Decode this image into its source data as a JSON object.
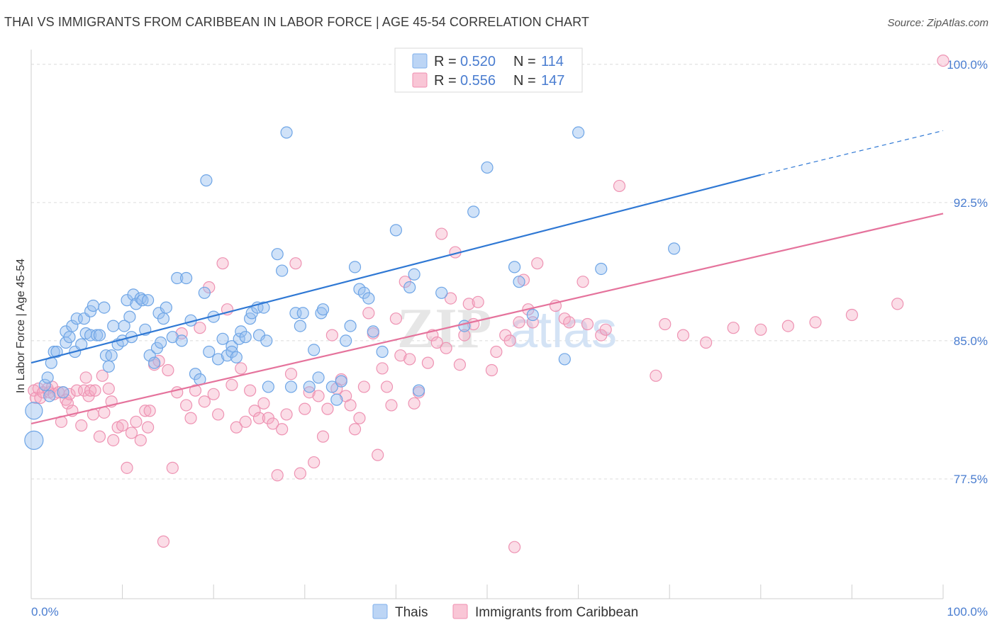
{
  "title": "THAI VS IMMIGRANTS FROM CARIBBEAN IN LABOR FORCE | AGE 45-54 CORRELATION CHART",
  "source": "Source: ZipAtlas.com",
  "watermark": {
    "zip": "ZIP",
    "atlas": "atlas"
  },
  "legend": {
    "r_label": "R =",
    "n_label": "N =",
    "series": [
      {
        "r": "0.520",
        "n": "114",
        "color": "#7fb0ec",
        "fill": "#bcd5f5"
      },
      {
        "r": "0.556",
        "n": "147",
        "color": "#f08fb0",
        "fill": "#f9c6d6"
      }
    ]
  },
  "bottom_legend": {
    "items": [
      "Thais",
      "Immigrants from Caribbean"
    ]
  },
  "chart_data": {
    "type": "scatter",
    "title": "THAI VS IMMIGRANTS FROM CARIBBEAN IN LABOR FORCE | AGE 45-54 CORRELATION CHART",
    "xlabel": "",
    "ylabel": "In Labor Force | Age 45-54",
    "xlim": [
      0,
      100
    ],
    "ylim": [
      71.0,
      100.8
    ],
    "y_ticks": [
      77.5,
      85.0,
      92.5,
      100.0
    ],
    "y_tick_labels": [
      "77.5%",
      "85.0%",
      "92.5%",
      "100.0%"
    ],
    "x_tick_labels": [
      "0.0%",
      "100.0%"
    ],
    "grid": "horizontal dashed",
    "series": [
      {
        "name": "Thais",
        "color": "#4a86d8",
        "trend": {
          "x": [
            0,
            80
          ],
          "y": [
            83.8,
            94.0
          ],
          "dashed_to": [
            100,
            96.4
          ]
        },
        "points": [
          [
            0.3,
            81.2
          ],
          [
            0.3,
            79.6
          ],
          [
            1.5,
            82.6
          ],
          [
            1.8,
            83.0
          ],
          [
            2.0,
            82.0
          ],
          [
            2.2,
            83.8
          ],
          [
            2.5,
            84.4
          ],
          [
            2.8,
            84.4
          ],
          [
            3.5,
            82.2
          ],
          [
            3.8,
            85.5
          ],
          [
            3.8,
            84.9
          ],
          [
            4.2,
            85.2
          ],
          [
            4.5,
            85.8
          ],
          [
            4.8,
            84.4
          ],
          [
            5.0,
            86.2
          ],
          [
            5.5,
            84.8
          ],
          [
            5.8,
            86.2
          ],
          [
            6.0,
            85.4
          ],
          [
            6.5,
            86.6
          ],
          [
            6.5,
            85.3
          ],
          [
            6.8,
            86.9
          ],
          [
            7.2,
            85.3
          ],
          [
            7.5,
            85.3
          ],
          [
            8.0,
            86.8
          ],
          [
            8.2,
            84.2
          ],
          [
            8.5,
            83.6
          ],
          [
            8.8,
            84.2
          ],
          [
            9.0,
            85.8
          ],
          [
            9.5,
            84.8
          ],
          [
            10.0,
            85.0
          ],
          [
            10.2,
            85.8
          ],
          [
            10.5,
            87.2
          ],
          [
            10.8,
            86.3
          ],
          [
            11.0,
            85.2
          ],
          [
            11.2,
            87.5
          ],
          [
            11.5,
            87.0
          ],
          [
            12.0,
            87.3
          ],
          [
            12.2,
            87.2
          ],
          [
            12.5,
            85.6
          ],
          [
            12.8,
            87.2
          ],
          [
            13.0,
            84.2
          ],
          [
            13.5,
            83.8
          ],
          [
            13.8,
            84.6
          ],
          [
            14.0,
            86.5
          ],
          [
            14.2,
            84.9
          ],
          [
            14.5,
            86.2
          ],
          [
            14.8,
            86.8
          ],
          [
            15.5,
            85.2
          ],
          [
            16.0,
            88.4
          ],
          [
            16.5,
            85.0
          ],
          [
            17.0,
            88.4
          ],
          [
            17.5,
            86.1
          ],
          [
            18.0,
            83.2
          ],
          [
            18.5,
            82.9
          ],
          [
            19.0,
            87.6
          ],
          [
            19.2,
            93.7
          ],
          [
            19.5,
            84.4
          ],
          [
            20.0,
            86.3
          ],
          [
            20.5,
            84.0
          ],
          [
            21.0,
            85.1
          ],
          [
            21.5,
            84.2
          ],
          [
            22.0,
            84.7
          ],
          [
            22.0,
            84.4
          ],
          [
            22.5,
            84.1
          ],
          [
            22.8,
            85.1
          ],
          [
            23.0,
            85.5
          ],
          [
            23.5,
            85.2
          ],
          [
            24.0,
            86.2
          ],
          [
            24.2,
            86.5
          ],
          [
            24.8,
            86.8
          ],
          [
            25.0,
            85.3
          ],
          [
            25.5,
            86.8
          ],
          [
            25.8,
            85.0
          ],
          [
            26.0,
            82.5
          ],
          [
            27.0,
            89.7
          ],
          [
            27.5,
            88.8
          ],
          [
            28.0,
            96.3
          ],
          [
            28.5,
            82.5
          ],
          [
            29.0,
            86.5
          ],
          [
            29.5,
            85.8
          ],
          [
            29.8,
            86.5
          ],
          [
            30.5,
            82.5
          ],
          [
            31.0,
            84.5
          ],
          [
            31.5,
            83.0
          ],
          [
            31.8,
            86.5
          ],
          [
            32.0,
            86.7
          ],
          [
            33.0,
            82.5
          ],
          [
            33.5,
            81.8
          ],
          [
            34.0,
            82.8
          ],
          [
            34.5,
            85.0
          ],
          [
            35.0,
            85.8
          ],
          [
            35.5,
            89.0
          ],
          [
            36.0,
            87.8
          ],
          [
            36.5,
            87.6
          ],
          [
            37.0,
            87.3
          ],
          [
            37.5,
            85.5
          ],
          [
            38.5,
            84.4
          ],
          [
            40.0,
            91.0
          ],
          [
            41.5,
            87.9
          ],
          [
            42.0,
            88.6
          ],
          [
            42.5,
            82.3
          ],
          [
            45.0,
            87.6
          ],
          [
            47.5,
            85.8
          ],
          [
            48.5,
            92.0
          ],
          [
            50.0,
            94.4
          ],
          [
            53.0,
            89.0
          ],
          [
            53.5,
            88.2
          ],
          [
            55.0,
            86.4
          ],
          [
            58.5,
            84.0
          ],
          [
            60.0,
            96.3
          ],
          [
            62.5,
            88.9
          ],
          [
            70.5,
            90.0
          ]
        ]
      },
      {
        "name": "Immigrants from Caribbean",
        "color": "#e8709a",
        "trend": {
          "x": [
            0,
            100
          ],
          "y": [
            80.5,
            91.9
          ]
        },
        "points": [
          [
            0.3,
            82.3
          ],
          [
            0.5,
            81.9
          ],
          [
            0.8,
            82.4
          ],
          [
            1.0,
            81.9
          ],
          [
            1.3,
            82.2
          ],
          [
            1.8,
            82.4
          ],
          [
            2.0,
            82.2
          ],
          [
            2.3,
            82.5
          ],
          [
            2.5,
            82.1
          ],
          [
            3.0,
            82.2
          ],
          [
            3.3,
            80.6
          ],
          [
            3.5,
            82.2
          ],
          [
            3.8,
            81.8
          ],
          [
            4.0,
            81.6
          ],
          [
            4.2,
            82.1
          ],
          [
            4.5,
            81.2
          ],
          [
            5.0,
            82.3
          ],
          [
            5.5,
            80.4
          ],
          [
            5.8,
            82.3
          ],
          [
            6.0,
            83.0
          ],
          [
            6.3,
            82.0
          ],
          [
            6.5,
            82.3
          ],
          [
            6.8,
            81.0
          ],
          [
            7.0,
            82.3
          ],
          [
            7.5,
            79.8
          ],
          [
            7.8,
            83.1
          ],
          [
            8.0,
            81.1
          ],
          [
            8.5,
            82.4
          ],
          [
            8.8,
            81.7
          ],
          [
            9.0,
            79.6
          ],
          [
            9.5,
            80.3
          ],
          [
            10.0,
            80.4
          ],
          [
            10.5,
            78.1
          ],
          [
            11.0,
            80.0
          ],
          [
            11.5,
            80.6
          ],
          [
            12.0,
            79.6
          ],
          [
            12.5,
            81.2
          ],
          [
            12.8,
            80.3
          ],
          [
            13.0,
            81.2
          ],
          [
            13.5,
            83.7
          ],
          [
            14.0,
            83.9
          ],
          [
            14.5,
            74.1
          ],
          [
            15.0,
            83.4
          ],
          [
            15.5,
            78.1
          ],
          [
            16.0,
            82.2
          ],
          [
            16.5,
            85.4
          ],
          [
            17.0,
            81.5
          ],
          [
            17.5,
            80.8
          ],
          [
            18.0,
            82.3
          ],
          [
            18.5,
            85.7
          ],
          [
            19.0,
            81.7
          ],
          [
            19.5,
            87.9
          ],
          [
            20.0,
            82.1
          ],
          [
            20.5,
            81.0
          ],
          [
            21.0,
            89.2
          ],
          [
            21.5,
            86.7
          ],
          [
            22.0,
            82.6
          ],
          [
            22.5,
            80.3
          ],
          [
            23.0,
            83.5
          ],
          [
            23.5,
            80.6
          ],
          [
            24.0,
            82.3
          ],
          [
            24.5,
            81.2
          ],
          [
            25.0,
            80.8
          ],
          [
            25.5,
            81.6
          ],
          [
            26.0,
            80.8
          ],
          [
            26.5,
            80.5
          ],
          [
            27.0,
            77.7
          ],
          [
            27.5,
            80.2
          ],
          [
            28.0,
            81.0
          ],
          [
            28.5,
            83.2
          ],
          [
            29.0,
            89.2
          ],
          [
            29.5,
            77.8
          ],
          [
            30.0,
            81.3
          ],
          [
            30.5,
            82.2
          ],
          [
            31.0,
            78.4
          ],
          [
            31.5,
            82.0
          ],
          [
            32.0,
            79.8
          ],
          [
            32.5,
            81.3
          ],
          [
            33.0,
            85.3
          ],
          [
            33.5,
            82.4
          ],
          [
            34.0,
            82.9
          ],
          [
            34.5,
            82.0
          ],
          [
            35.0,
            81.5
          ],
          [
            35.5,
            80.2
          ],
          [
            36.0,
            80.8
          ],
          [
            36.5,
            82.5
          ],
          [
            37.0,
            86.5
          ],
          [
            37.5,
            85.4
          ],
          [
            38.0,
            78.8
          ],
          [
            38.5,
            83.5
          ],
          [
            39.0,
            82.5
          ],
          [
            39.5,
            81.5
          ],
          [
            40.0,
            86.2
          ],
          [
            40.5,
            84.2
          ],
          [
            41.0,
            88.2
          ],
          [
            41.5,
            84.0
          ],
          [
            42.0,
            81.6
          ],
          [
            42.5,
            82.2
          ],
          [
            43.5,
            83.8
          ],
          [
            44.0,
            85.3
          ],
          [
            44.5,
            84.9
          ],
          [
            45.0,
            90.8
          ],
          [
            45.5,
            84.6
          ],
          [
            46.0,
            87.3
          ],
          [
            46.5,
            89.8
          ],
          [
            47.0,
            83.7
          ],
          [
            47.5,
            85.3
          ],
          [
            48.0,
            87.0
          ],
          [
            48.5,
            85.9
          ],
          [
            49.0,
            87.1
          ],
          [
            50.5,
            83.4
          ],
          [
            51.0,
            84.4
          ],
          [
            52.0,
            85.3
          ],
          [
            52.5,
            85.0
          ],
          [
            53.0,
            73.8
          ],
          [
            53.5,
            86.0
          ],
          [
            54.0,
            88.3
          ],
          [
            54.5,
            86.7
          ],
          [
            55.0,
            86.0
          ],
          [
            55.5,
            89.2
          ],
          [
            57.5,
            86.9
          ],
          [
            58.5,
            86.2
          ],
          [
            59.0,
            86.0
          ],
          [
            60.5,
            88.2
          ],
          [
            61.0,
            85.9
          ],
          [
            62.5,
            85.3
          ],
          [
            63.0,
            85.6
          ],
          [
            64.5,
            93.4
          ],
          [
            68.5,
            83.1
          ],
          [
            69.5,
            85.9
          ],
          [
            71.5,
            85.3
          ],
          [
            74.0,
            84.9
          ],
          [
            77.0,
            85.7
          ],
          [
            80.0,
            85.6
          ],
          [
            83.0,
            85.8
          ],
          [
            86.0,
            86.0
          ],
          [
            90.0,
            86.4
          ],
          [
            95.0,
            87.0
          ],
          [
            100.0,
            100.2
          ]
        ]
      }
    ]
  }
}
